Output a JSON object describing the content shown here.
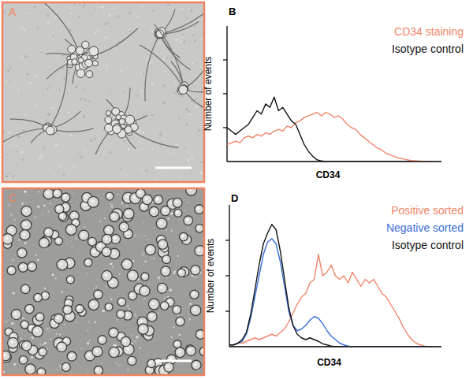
{
  "images": [
    {
      "label": "A"
    },
    {
      "label": "C"
    }
  ],
  "chart_data": [
    {
      "type": "line",
      "title": "B",
      "xlabel": "CD34",
      "ylabel": "Number of events",
      "x": [
        0,
        2,
        4,
        6,
        8,
        10,
        12,
        14,
        16,
        18,
        20,
        22,
        24,
        26,
        28,
        30,
        32,
        34,
        36,
        38,
        40,
        42,
        44,
        46,
        48,
        50,
        52,
        54,
        56,
        58,
        60,
        62,
        64,
        66,
        68,
        70,
        72,
        74,
        76,
        78,
        80,
        82,
        84,
        86,
        88,
        90,
        92,
        94,
        96
      ],
      "xlim": [
        0,
        100
      ],
      "ylim": [
        0,
        4
      ],
      "yticks": [
        1,
        2,
        3
      ],
      "tick_labels": false,
      "legend": "upper right",
      "series": [
        {
          "name": "CD34 staining",
          "color": "#f08468",
          "values": [
            0.5,
            0.55,
            0.6,
            0.55,
            0.7,
            0.75,
            0.7,
            0.8,
            0.75,
            0.85,
            0.8,
            0.9,
            0.95,
            0.9,
            1.05,
            1.0,
            1.15,
            1.2,
            1.3,
            1.35,
            1.4,
            1.45,
            1.35,
            1.45,
            1.4,
            1.3,
            1.35,
            1.25,
            1.1,
            1.0,
            0.95,
            0.8,
            0.7,
            0.6,
            0.5,
            0.4,
            0.35,
            0.25,
            0.2,
            0.15,
            0.1,
            0.08,
            0.05,
            0.03,
            0.02,
            0.01,
            0,
            0,
            0
          ]
        },
        {
          "name": "Isotype control",
          "color": "#111111",
          "values": [
            1.0,
            0.9,
            0.8,
            0.9,
            1.0,
            1.1,
            1.3,
            1.5,
            1.4,
            1.7,
            1.6,
            1.9,
            1.5,
            1.6,
            1.4,
            1.2,
            1.1,
            0.8,
            0.5,
            0.3,
            0.15,
            0.05,
            0.02,
            0,
            0,
            0,
            0,
            0,
            0,
            0,
            0,
            0,
            0,
            0,
            0,
            0,
            0,
            0,
            0,
            0,
            0,
            0,
            0,
            0,
            0,
            0,
            0,
            0,
            0
          ]
        }
      ]
    },
    {
      "type": "line",
      "title": "D",
      "xlabel": "CD34",
      "ylabel": "Number of events",
      "x": [
        0,
        2,
        4,
        6,
        8,
        10,
        12,
        14,
        16,
        18,
        20,
        22,
        24,
        26,
        28,
        30,
        32,
        34,
        36,
        38,
        40,
        42,
        44,
        46,
        48,
        50,
        52,
        54,
        56,
        58,
        60,
        62,
        64,
        66,
        68,
        70,
        72,
        74,
        76,
        78,
        80,
        82,
        84,
        86,
        88,
        90,
        92,
        94,
        96
      ],
      "xlim": [
        0,
        100
      ],
      "ylim": [
        0,
        4
      ],
      "yticks": [
        1,
        2,
        3
      ],
      "tick_labels": false,
      "legend": "upper right",
      "series": [
        {
          "name": "Positive sorted",
          "color": "#f08468",
          "values": [
            0.05,
            0.05,
            0.1,
            0.1,
            0.15,
            0.2,
            0.25,
            0.2,
            0.25,
            0.3,
            0.35,
            0.3,
            0.4,
            0.5,
            0.7,
            0.95,
            1.2,
            1.4,
            1.5,
            1.8,
            1.9,
            2.6,
            2.0,
            2.1,
            2.3,
            2.0,
            1.9,
            2.0,
            1.8,
            2.1,
            1.9,
            1.7,
            1.9,
            1.8,
            1.9,
            1.7,
            1.5,
            1.4,
            1.2,
            1.0,
            0.8,
            0.55,
            0.35,
            0.2,
            0.1,
            0.05,
            0.02,
            0,
            0
          ]
        },
        {
          "name": "Negative sorted",
          "color": "#3a6fd8",
          "values": [
            0.05,
            0.05,
            0.1,
            0.15,
            0.35,
            0.8,
            1.4,
            2.0,
            2.6,
            2.95,
            3.05,
            2.9,
            2.4,
            1.7,
            1.0,
            0.6,
            0.45,
            0.5,
            0.6,
            0.75,
            0.85,
            0.8,
            0.65,
            0.45,
            0.3,
            0.2,
            0.1,
            0.05,
            0.02,
            0,
            0,
            0,
            0,
            0,
            0,
            0,
            0,
            0,
            0,
            0,
            0,
            0,
            0,
            0,
            0,
            0,
            0,
            0,
            0
          ]
        },
        {
          "name": "Isotype control",
          "color": "#111111",
          "values": [
            0.05,
            0.05,
            0.1,
            0.2,
            0.4,
            0.9,
            1.6,
            2.3,
            2.9,
            3.2,
            3.45,
            3.3,
            2.7,
            1.9,
            1.1,
            0.6,
            0.35,
            0.25,
            0.2,
            0.25,
            0.2,
            0.15,
            0.08,
            0.05,
            0.02,
            0,
            0,
            0,
            0,
            0,
            0,
            0,
            0,
            0,
            0,
            0,
            0,
            0,
            0,
            0,
            0,
            0,
            0,
            0,
            0,
            0,
            0,
            0,
            0
          ]
        }
      ]
    }
  ]
}
